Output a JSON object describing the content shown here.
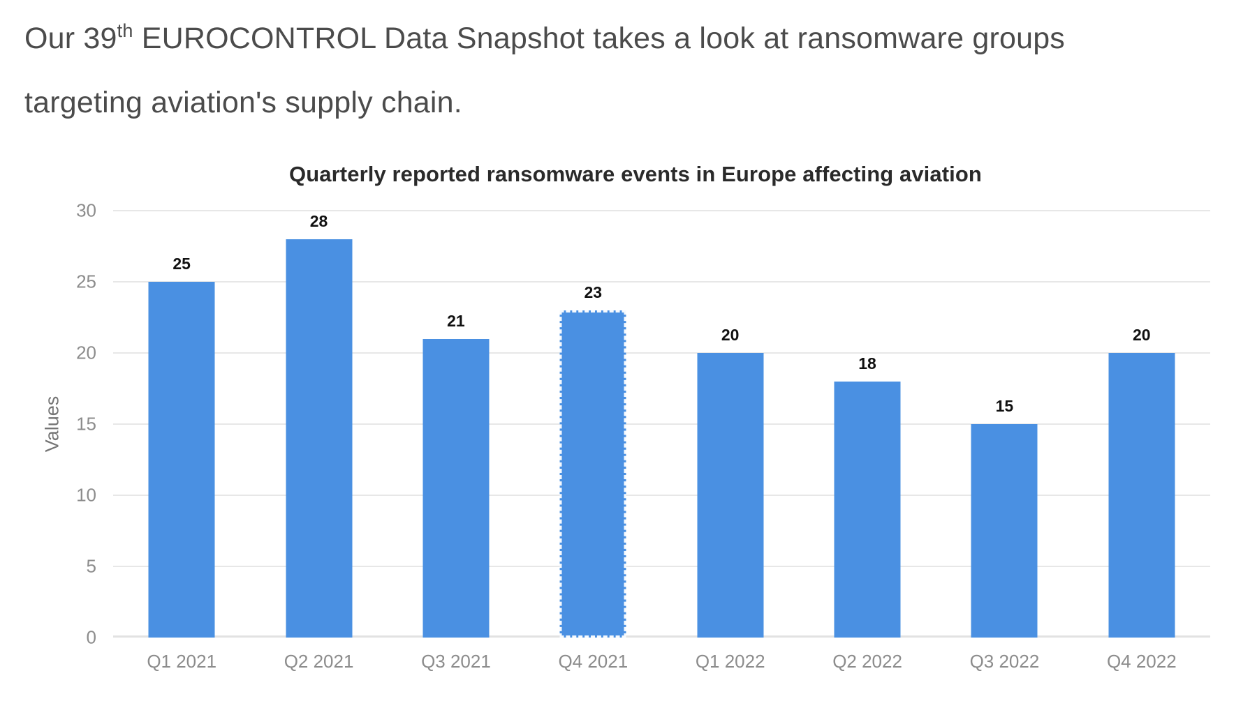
{
  "headline": {
    "prefix": "Our 39",
    "superscript": "th",
    "line1_rest": " EUROCONTROL Data Snapshot takes a look at ransomware groups",
    "line2": "targeting aviation's supply chain."
  },
  "chart_data": {
    "type": "bar",
    "title": "Quarterly reported ransomware events in Europe affecting aviation",
    "xlabel": "",
    "ylabel": "Values",
    "categories": [
      "Q1 2021",
      "Q2 2021",
      "Q3 2021",
      "Q4 2021",
      "Q1 2022",
      "Q2 2022",
      "Q3 2022",
      "Q4 2022"
    ],
    "values": [
      25,
      28,
      21,
      23,
      20,
      18,
      15,
      20
    ],
    "ylim": [
      0,
      30
    ],
    "yticks": [
      0,
      5,
      10,
      15,
      20,
      25,
      30
    ],
    "grid": true,
    "legend": "none",
    "selected_index": 3,
    "bar_color": "#4a90e2",
    "gridline_color": "#e7e7e7",
    "data_label_color": "#111111",
    "axis_tick_color": "#8c8c8c",
    "axis_title_color": "#757575",
    "title_color": "#2a2a2a",
    "headline_color": "#4b4b4b"
  }
}
